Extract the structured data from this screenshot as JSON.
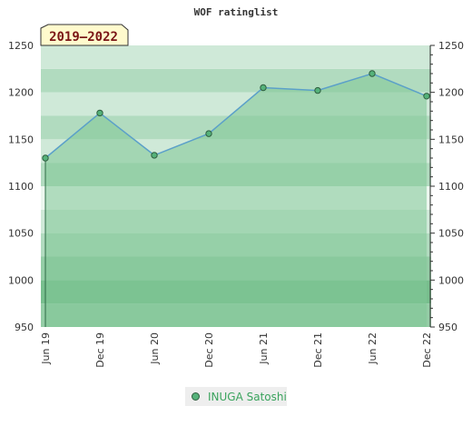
{
  "chart_data": {
    "type": "area",
    "title": "WOF ratinglist",
    "period_label": "2019–2022",
    "categories": [
      "Jun 19",
      "Dec 19",
      "Jun 20",
      "Dec 20",
      "Jun 21",
      "Dec 21",
      "Jun 22",
      "Dec 22"
    ],
    "series": [
      {
        "name": "INUGA Satoshi",
        "values": [
          1130,
          1178,
          1133,
          1156,
          1205,
          1202,
          1220,
          1196
        ]
      }
    ],
    "ylim": [
      950,
      1250
    ],
    "yticks": [
      950,
      1000,
      1050,
      1100,
      1150,
      1200,
      1250
    ],
    "ytick_labels": [
      "950",
      "1000",
      "1050",
      "1100",
      "1150",
      "1200",
      "1250"
    ],
    "y_minor_step": 10,
    "grid": "horizontal bands",
    "legend_position": "bottom-center",
    "colors": {
      "line": "#5ba0c9",
      "area_fill": "#7fc796",
      "marker_fill": "#55b27a",
      "marker_stroke": "#2e5e3f",
      "band_colors": [
        "#ecf7ef",
        "#cfe9d8",
        "#b1dbbf",
        "#94cda6",
        "#78bf8e"
      ]
    }
  }
}
